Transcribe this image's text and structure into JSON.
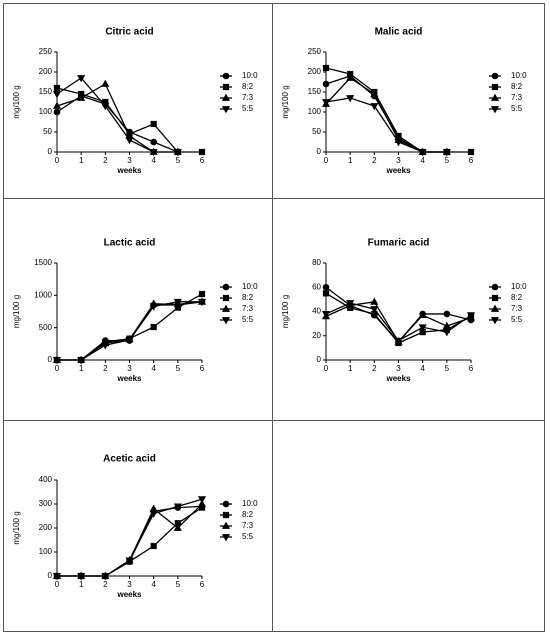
{
  "chart_data": [
    {
      "type": "line",
      "title": "Citric acid",
      "x_label": "weeks",
      "y_label": "mg/100 g",
      "x": [
        0,
        1,
        2,
        3,
        4,
        5,
        6
      ],
      "xlim": [
        0,
        6
      ],
      "xticks": [
        0,
        1,
        2,
        3,
        4,
        5,
        6
      ],
      "ylim": [
        0,
        250
      ],
      "yticks": [
        0,
        50,
        100,
        150,
        200,
        250
      ],
      "legend": "right",
      "series": [
        {
          "name": "10:0",
          "marker": "circle",
          "color": "#000000",
          "values": [
            100,
            140,
            120,
            50,
            25,
            0,
            null
          ]
        },
        {
          "name": "8:2",
          "marker": "square",
          "color": "#000000",
          "values": [
            160,
            145,
            125,
            45,
            70,
            0,
            0
          ]
        },
        {
          "name": "7:3",
          "marker": "triangle",
          "color": "#000000",
          "values": [
            115,
            135,
            170,
            40,
            0,
            0,
            null
          ]
        },
        {
          "name": "5:5",
          "marker": "triangle-down",
          "color": "#000000",
          "values": [
            145,
            185,
            115,
            30,
            0,
            0,
            null
          ]
        }
      ]
    },
    {
      "type": "line",
      "title": "Malic acid",
      "x_label": "weeks",
      "y_label": "mg/100 g",
      "x": [
        0,
        1,
        2,
        3,
        4,
        5,
        6
      ],
      "xlim": [
        0,
        6
      ],
      "xticks": [
        0,
        1,
        2,
        3,
        4,
        5,
        6
      ],
      "ylim": [
        0,
        250
      ],
      "yticks": [
        0,
        50,
        100,
        150,
        200,
        250
      ],
      "legend": "right",
      "series": [
        {
          "name": "10:0",
          "marker": "circle",
          "color": "#000000",
          "values": [
            170,
            190,
            140,
            35,
            0,
            0,
            null
          ]
        },
        {
          "name": "8:2",
          "marker": "square",
          "color": "#000000",
          "values": [
            210,
            195,
            150,
            40,
            0,
            0,
            0
          ]
        },
        {
          "name": "7:3",
          "marker": "triangle",
          "color": "#000000",
          "values": [
            120,
            185,
            145,
            30,
            0,
            0,
            null
          ]
        },
        {
          "name": "5:5",
          "marker": "triangle-down",
          "color": "#000000",
          "values": [
            125,
            135,
            115,
            25,
            0,
            0,
            null
          ]
        }
      ]
    },
    {
      "type": "line",
      "title": "Lactic acid",
      "x_label": "weeks",
      "y_label": "mg/100 g",
      "x": [
        0,
        1,
        2,
        3,
        4,
        5,
        6
      ],
      "xlim": [
        0,
        6
      ],
      "xticks": [
        0,
        1,
        2,
        3,
        4,
        5,
        6
      ],
      "ylim": [
        0,
        1500
      ],
      "yticks": [
        0,
        500,
        1000,
        1500
      ],
      "legend": "right",
      "series": [
        {
          "name": "10:0",
          "marker": "circle",
          "color": "#000000",
          "values": [
            0,
            0,
            300,
            300,
            850,
            850,
            900
          ]
        },
        {
          "name": "8:2",
          "marker": "square",
          "color": "#000000",
          "values": [
            0,
            0,
            280,
            330,
            510,
            810,
            1020
          ]
        },
        {
          "name": "7:3",
          "marker": "triangle",
          "color": "#000000",
          "values": [
            0,
            0,
            260,
            320,
            870,
            860,
            900
          ]
        },
        {
          "name": "5:5",
          "marker": "triangle-down",
          "color": "#000000",
          "values": [
            0,
            0,
            230,
            310,
            830,
            900,
            900
          ]
        }
      ]
    },
    {
      "type": "line",
      "title": "Fumaric acid",
      "x_label": "weeks",
      "y_label": "mg/100 g",
      "x": [
        0,
        1,
        2,
        3,
        4,
        5,
        6
      ],
      "xlim": [
        0,
        6
      ],
      "xticks": [
        0,
        1,
        2,
        3,
        4,
        5,
        6
      ],
      "ylim": [
        0,
        80
      ],
      "yticks": [
        0,
        20,
        40,
        60,
        80
      ],
      "legend": "right",
      "series": [
        {
          "name": "10:0",
          "marker": "circle",
          "color": "#000000",
          "values": [
            60,
            45,
            37,
            15,
            38,
            38,
            33
          ]
        },
        {
          "name": "8:2",
          "marker": "square",
          "color": "#000000",
          "values": [
            55,
            43,
            38,
            14,
            23,
            25,
            36
          ]
        },
        {
          "name": "7:3",
          "marker": "triangle",
          "color": "#000000",
          "values": [
            36,
            45,
            48,
            15,
            37,
            28,
            35
          ]
        },
        {
          "name": "5:5",
          "marker": "triangle-down",
          "color": "#000000",
          "values": [
            38,
            47,
            42,
            16,
            27,
            23,
            37
          ]
        }
      ]
    },
    {
      "type": "line",
      "title": "Acetic acid",
      "x_label": "weeks",
      "y_label": "mg/100 g",
      "x": [
        0,
        1,
        2,
        3,
        4,
        5,
        6
      ],
      "xlim": [
        0,
        6
      ],
      "xticks": [
        0,
        1,
        2,
        3,
        4,
        5,
        6
      ],
      "ylim": [
        0,
        400
      ],
      "yticks": [
        0,
        100,
        200,
        300,
        400
      ],
      "legend": "right",
      "series": [
        {
          "name": "10:0",
          "marker": "circle",
          "color": "#000000",
          "values": [
            0,
            0,
            0,
            60,
            270,
            285,
            290
          ]
        },
        {
          "name": "8:2",
          "marker": "square",
          "color": "#000000",
          "values": [
            0,
            0,
            0,
            60,
            125,
            220,
            285
          ]
        },
        {
          "name": "7:3",
          "marker": "triangle",
          "color": "#000000",
          "values": [
            0,
            0,
            0,
            65,
            280,
            200,
            300
          ]
        },
        {
          "name": "5:5",
          "marker": "triangle-down",
          "color": "#000000",
          "values": [
            0,
            0,
            0,
            65,
            260,
            290,
            320
          ]
        }
      ]
    }
  ]
}
